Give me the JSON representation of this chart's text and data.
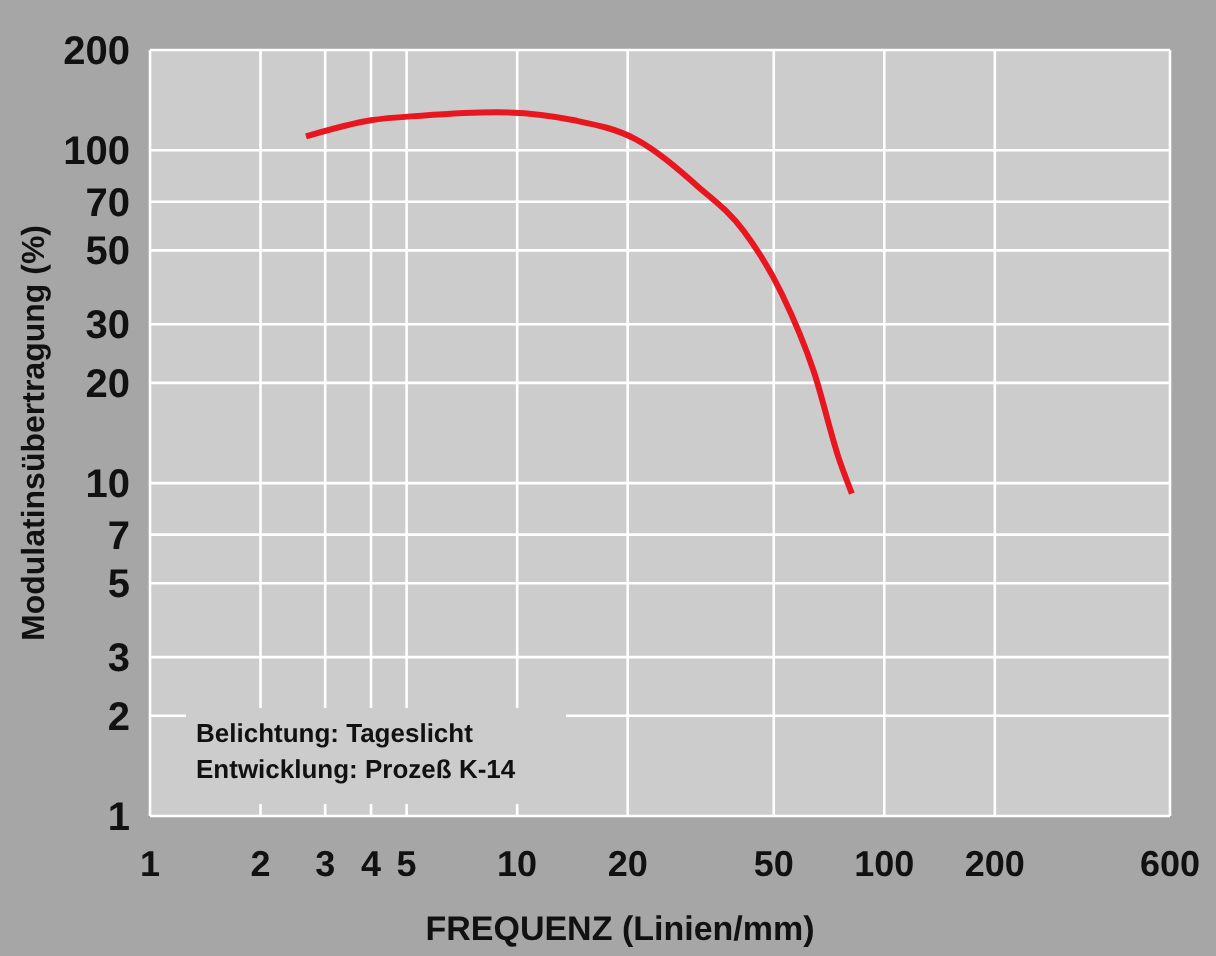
{
  "chart_data": {
    "type": "line",
    "xlabel": "FREQUENZ (Linien/mm)",
    "ylabel": "Modulatinsübertragung (%)",
    "log": "xy",
    "grid": true,
    "xlim": [
      1,
      600
    ],
    "ylim": [
      1,
      200
    ],
    "xticks": [
      1,
      2,
      3,
      4,
      5,
      10,
      20,
      50,
      100,
      200,
      600
    ],
    "yticks": [
      1,
      2,
      3,
      5,
      7,
      10,
      20,
      30,
      50,
      70,
      100,
      200
    ],
    "series": [
      {
        "color": "#e8161f",
        "x": [
          2.66,
          4,
          5.5,
          8.8,
          14.3,
          21,
          31,
          41.5,
          52.6,
          64.3,
          75.5,
          81.6
        ],
        "values": [
          110,
          123,
          127,
          130,
          123,
          108,
          78,
          57,
          37,
          21.6,
          11.7,
          9.3
        ]
      }
    ],
    "annotations": [
      "Belichtung: Tageslicht",
      "Entwicklung: Prozeß K-14"
    ]
  }
}
